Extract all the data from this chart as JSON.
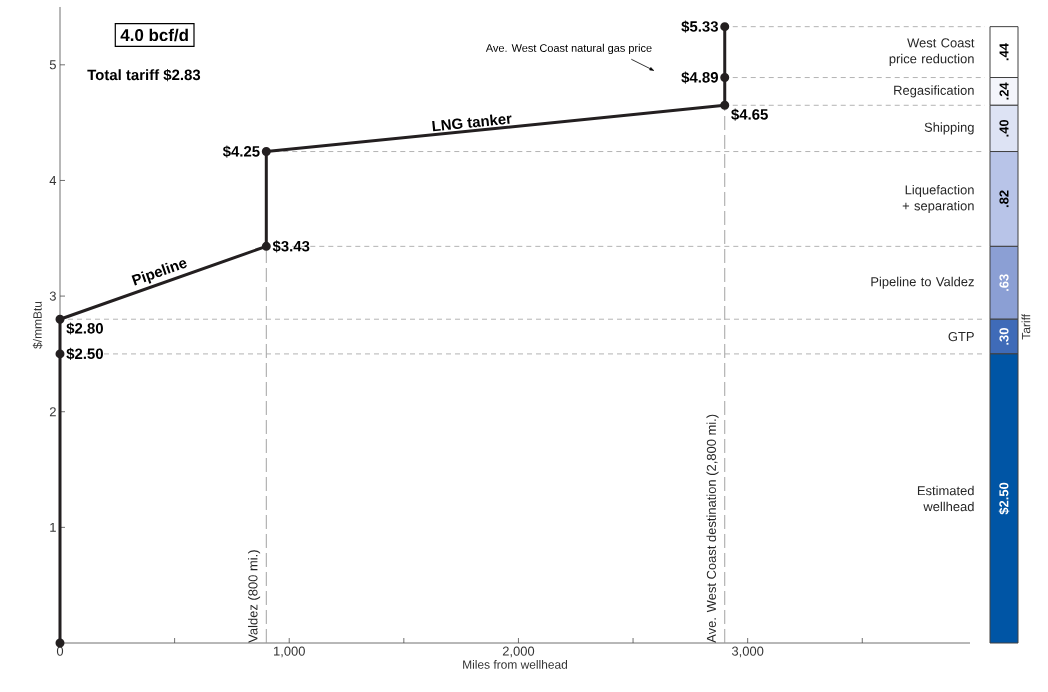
{
  "chart_data": [
    {
      "type": "line",
      "xlabel": "Miles from wellhead",
      "ylabel": "$/mmBtu",
      "annotations": [
        "4.0 bcf/d",
        "Total tariff $2.83",
        {
          "text": "Pipeline",
          "x": 450,
          "y": 3.12
        },
        {
          "text": "LNG tanker",
          "x": 1800,
          "y": 4.43
        },
        "Ave. West Coast natural gas price"
      ],
      "x": [
        0,
        0,
        0,
        900,
        900,
        2900,
        2900,
        2900
      ],
      "series": [
        {
          "color": "#231f20",
          "values": [
            0,
            2.5,
            2.8,
            3.43,
            4.25,
            4.65,
            4.89,
            5.33
          ],
          "value_labels": [
            null,
            "$2.50",
            "$2.80",
            "$3.43",
            "$4.25",
            "$4.65",
            "$4.89",
            "$5.33"
          ]
        }
      ],
      "marker": "circle",
      "line_style": "solid",
      "xlim": [
        0,
        3970
      ],
      "ylim": [
        0,
        5.5
      ],
      "xticks": [
        0,
        {
          "value": 500,
          "label": null
        },
        {
          "value": 1000,
          "label": "1,000"
        },
        {
          "value": 1500,
          "label": null
        },
        {
          "value": 2000,
          "label": "2,000"
        },
        {
          "value": 2500,
          "label": null
        },
        {
          "value": 3000,
          "label": "3,000"
        },
        {
          "value": 3500,
          "label": null
        }
      ],
      "yticks": [
        1,
        2,
        3,
        4,
        5
      ],
      "ref_lines": [
        {
          "axis": "x",
          "value": 900,
          "label": "Valdez (800 mi.)",
          "color": "#999999",
          "line_style": "dashed"
        },
        {
          "axis": "x",
          "value": 2900,
          "label": "Ave. West Coast destination (2,800 mi.)",
          "color": "#999999",
          "line_style": "dashed"
        },
        {
          "axis": "y",
          "value": 2.5,
          "color": "#aaaaaa",
          "line_style": "dashed"
        },
        {
          "axis": "y",
          "value": 2.8,
          "color": "#aaaaaa",
          "line_style": "dashed"
        },
        {
          "axis": "y",
          "value": 3.43,
          "color": "#aaaaaa",
          "line_style": "dashed"
        },
        {
          "axis": "y",
          "value": 4.25,
          "color": "#aaaaaa",
          "line_style": "dashed"
        },
        {
          "axis": "y",
          "value": 4.65,
          "color": "#aaaaaa",
          "line_style": "dashed"
        },
        {
          "axis": "y",
          "value": 4.89,
          "color": "#aaaaaa",
          "line_style": "dashed"
        },
        {
          "axis": "y",
          "value": 5.33,
          "color": "#aaaaaa",
          "line_style": "dashed"
        }
      ]
    },
    {
      "type": "bar",
      "stacked": true,
      "ylabel": "Tariff",
      "categories": [
        null
      ],
      "tick_labels": false,
      "series": [
        {
          "name": "Estimated wellhead",
          "color": "#0055a5",
          "values": [
            2.5
          ],
          "value_labels": [
            "$2.50"
          ]
        },
        {
          "name": "GTP",
          "color": "#3f6bb8",
          "values": [
            0.3
          ],
          "value_labels": [
            ".30"
          ]
        },
        {
          "name": "Pipeline to Valdez",
          "color": "#8b9fd4",
          "values": [
            0.63
          ],
          "value_labels": [
            ".63"
          ]
        },
        {
          "name": "Liquefaction + separation",
          "color": "#b8c4e8",
          "values": [
            0.82
          ],
          "value_labels": [
            ".82"
          ]
        },
        {
          "name": "Shipping",
          "color": "#dde3f4",
          "values": [
            0.4
          ],
          "value_labels": [
            ".40"
          ]
        },
        {
          "name": "Regasification",
          "color": "#f4f5fb",
          "values": [
            0.24
          ],
          "value_labels": [
            ".24"
          ]
        },
        {
          "name": "West Coast price reduction",
          "color": "#ffffff",
          "values": [
            0.44
          ],
          "value_labels": [
            ".44"
          ]
        }
      ]
    }
  ]
}
